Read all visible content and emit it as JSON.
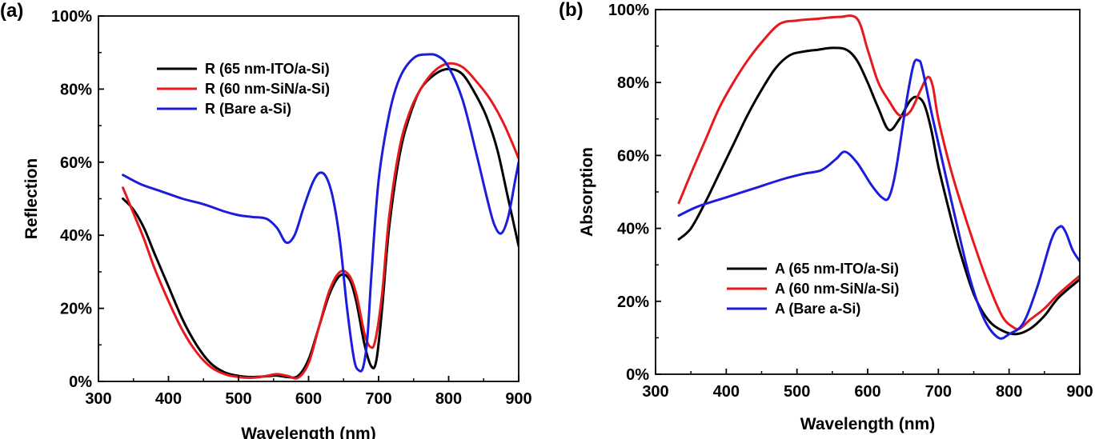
{
  "chart_data": [
    {
      "type": "line",
      "panel_label": "(a)",
      "title": "",
      "xlabel": "Wavelength (nm)",
      "ylabel": "Reflection",
      "xlim": [
        300,
        900
      ],
      "ylim": [
        0,
        100
      ],
      "x_ticks": [
        "300",
        "400",
        "500",
        "600",
        "700",
        "800",
        "900"
      ],
      "y_ticks": [
        "0%",
        "20%",
        "40%",
        "60%",
        "80%",
        "100%"
      ],
      "legend_position": "top-center",
      "colors": {
        "black": "#000000",
        "red": "#e8191c",
        "blue": "#1c1cdb"
      },
      "series": [
        {
          "name": "R (65 nm-ITO/a-Si)",
          "color": "#000000",
          "x": [
            335,
            350,
            365,
            380,
            400,
            420,
            440,
            460,
            480,
            500,
            520,
            540,
            555,
            570,
            585,
            600,
            615,
            630,
            645,
            658,
            668,
            680,
            690,
            697,
            705,
            715,
            730,
            745,
            760,
            780,
            800,
            820,
            840,
            855,
            870,
            885,
            900
          ],
          "y": [
            50,
            47,
            42,
            35,
            26,
            17,
            10,
            5,
            2.5,
            1.5,
            1.2,
            1.4,
            1.6,
            1.2,
            1.5,
            6,
            15,
            24,
            29,
            28,
            22,
            10,
            4,
            6,
            20,
            42,
            62,
            73,
            80,
            84,
            85.5,
            84,
            78,
            72,
            63,
            50,
            37
          ]
        },
        {
          "name": "R (60 nm-SiN/a-Si)",
          "color": "#e8191c",
          "x": [
            335,
            350,
            365,
            380,
            400,
            420,
            440,
            460,
            480,
            500,
            520,
            540,
            555,
            570,
            585,
            600,
            615,
            630,
            645,
            658,
            668,
            680,
            688,
            695,
            705,
            715,
            730,
            745,
            760,
            780,
            800,
            820,
            840,
            860,
            880,
            900
          ],
          "y": [
            53,
            46,
            39,
            31,
            22,
            14,
            8,
            4,
            2,
            1.2,
            1.0,
            1.5,
            2,
            1.5,
            1,
            5,
            15,
            25,
            30,
            29,
            24,
            13,
            9.5,
            11,
            24,
            45,
            64,
            74,
            80,
            85,
            87,
            86,
            82,
            77,
            70,
            61
          ]
        },
        {
          "name": "R (Bare a-Si)",
          "color": "#1c1cdb",
          "x": [
            335,
            360,
            390,
            420,
            450,
            480,
            500,
            520,
            540,
            555,
            568,
            580,
            592,
            605,
            615,
            625,
            635,
            645,
            655,
            665,
            672,
            678,
            684,
            690,
            700,
            715,
            730,
            750,
            770,
            785,
            800,
            820,
            840,
            855,
            865,
            875,
            885,
            895,
            900
          ],
          "y": [
            56.5,
            54,
            52,
            50,
            48.5,
            46.5,
            45.5,
            45,
            44.5,
            42,
            38,
            40,
            47,
            54,
            57,
            56,
            50,
            38,
            20,
            6,
            3,
            4,
            12,
            30,
            55,
            73,
            83,
            88.5,
            89.5,
            89,
            86,
            77,
            62,
            50,
            43,
            40.5,
            45,
            55,
            60
          ]
        }
      ]
    },
    {
      "type": "line",
      "panel_label": "(b)",
      "title": "",
      "xlabel": "Wavelength (nm)",
      "ylabel": "Absorption",
      "xlim": [
        300,
        900
      ],
      "ylim": [
        0,
        100
      ],
      "x_ticks": [
        "300",
        "400",
        "500",
        "600",
        "700",
        "800",
        "900"
      ],
      "y_ticks": [
        "0%",
        "20%",
        "40%",
        "60%",
        "80%",
        "100%"
      ],
      "legend_position": "bottom-center",
      "colors": {
        "black": "#000000",
        "red": "#e8191c",
        "blue": "#1c1cdb"
      },
      "series": [
        {
          "name": "A (65 nm-ITO/a-Si)",
          "color": "#000000",
          "x": [
            333,
            350,
            370,
            390,
            410,
            430,
            450,
            470,
            490,
            510,
            530,
            550,
            570,
            585,
            600,
            615,
            630,
            645,
            660,
            670,
            680,
            690,
            700,
            715,
            730,
            750,
            770,
            790,
            810,
            830,
            850,
            870,
            900
          ],
          "y": [
            37,
            40,
            47,
            55,
            63,
            71,
            78,
            84,
            87.5,
            88.5,
            89,
            89.5,
            89,
            86,
            80,
            73,
            67,
            70,
            75,
            76,
            74,
            67,
            57,
            45,
            34,
            22,
            15,
            12,
            11,
            12.5,
            16,
            21,
            26
          ]
        },
        {
          "name": "A (60 nm-SiN/a-Si)",
          "color": "#e8191c",
          "x": [
            333,
            350,
            370,
            390,
            410,
            430,
            450,
            475,
            500,
            530,
            560,
            585,
            600,
            615,
            630,
            645,
            660,
            675,
            685,
            692,
            700,
            715,
            730,
            750,
            770,
            790,
            805,
            815,
            830,
            850,
            870,
            900
          ],
          "y": [
            47,
            55,
            64,
            73,
            80,
            86,
            91,
            96,
            97,
            97.5,
            98,
            97.5,
            89,
            80,
            75,
            71,
            72,
            78,
            81.5,
            79,
            70,
            58,
            48,
            36,
            25,
            16,
            13,
            12.5,
            15,
            18,
            22,
            27
          ]
        },
        {
          "name": "A (Bare a-Si)",
          "color": "#1c1cdb",
          "x": [
            333,
            360,
            400,
            440,
            480,
            510,
            535,
            555,
            568,
            585,
            605,
            620,
            630,
            640,
            655,
            665,
            672,
            677,
            690,
            705,
            725,
            745,
            765,
            785,
            800,
            820,
            840,
            860,
            872,
            880,
            890,
            900
          ],
          "y": [
            43.5,
            46,
            48.5,
            51,
            53.5,
            55,
            56,
            59,
            61,
            58,
            52,
            48.5,
            48.5,
            56,
            75,
            85,
            86,
            84,
            72,
            59,
            42,
            26,
            15,
            10,
            11,
            14,
            24,
            37,
            40.5,
            39,
            34,
            31
          ]
        }
      ]
    }
  ]
}
